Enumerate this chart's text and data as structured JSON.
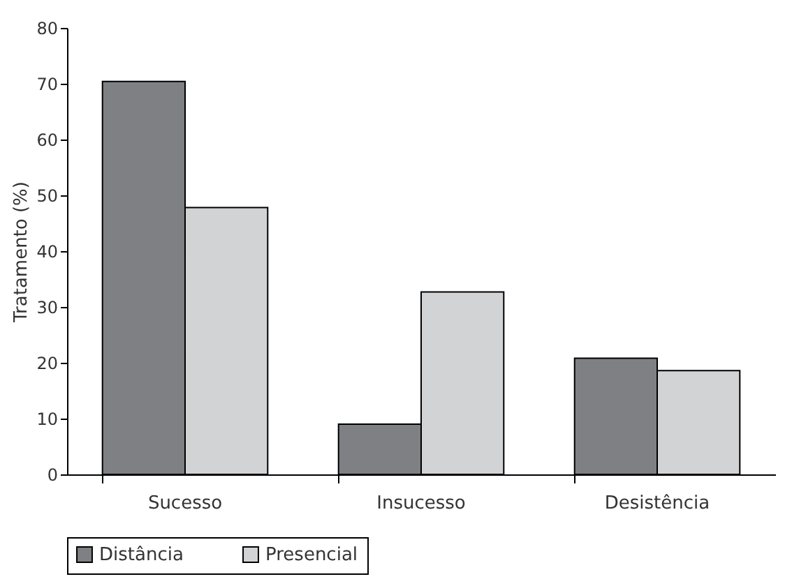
{
  "chart_data": {
    "type": "bar",
    "ylabel": "Tratamento (%)",
    "categories": [
      "Sucesso",
      "Insucesso",
      "Desistência"
    ],
    "series": [
      {
        "name": "Distância",
        "color": "#7f8084",
        "values": [
          70.4,
          9.0,
          20.8
        ]
      },
      {
        "name": "Presencial",
        "color": "#d2d3d5",
        "values": [
          47.8,
          32.7,
          18.6
        ]
      }
    ],
    "ylim": [
      0,
      80
    ],
    "yticks": [
      0,
      10,
      20,
      30,
      40,
      50,
      60,
      70,
      80
    ],
    "grid": false,
    "legend": "bottom"
  }
}
